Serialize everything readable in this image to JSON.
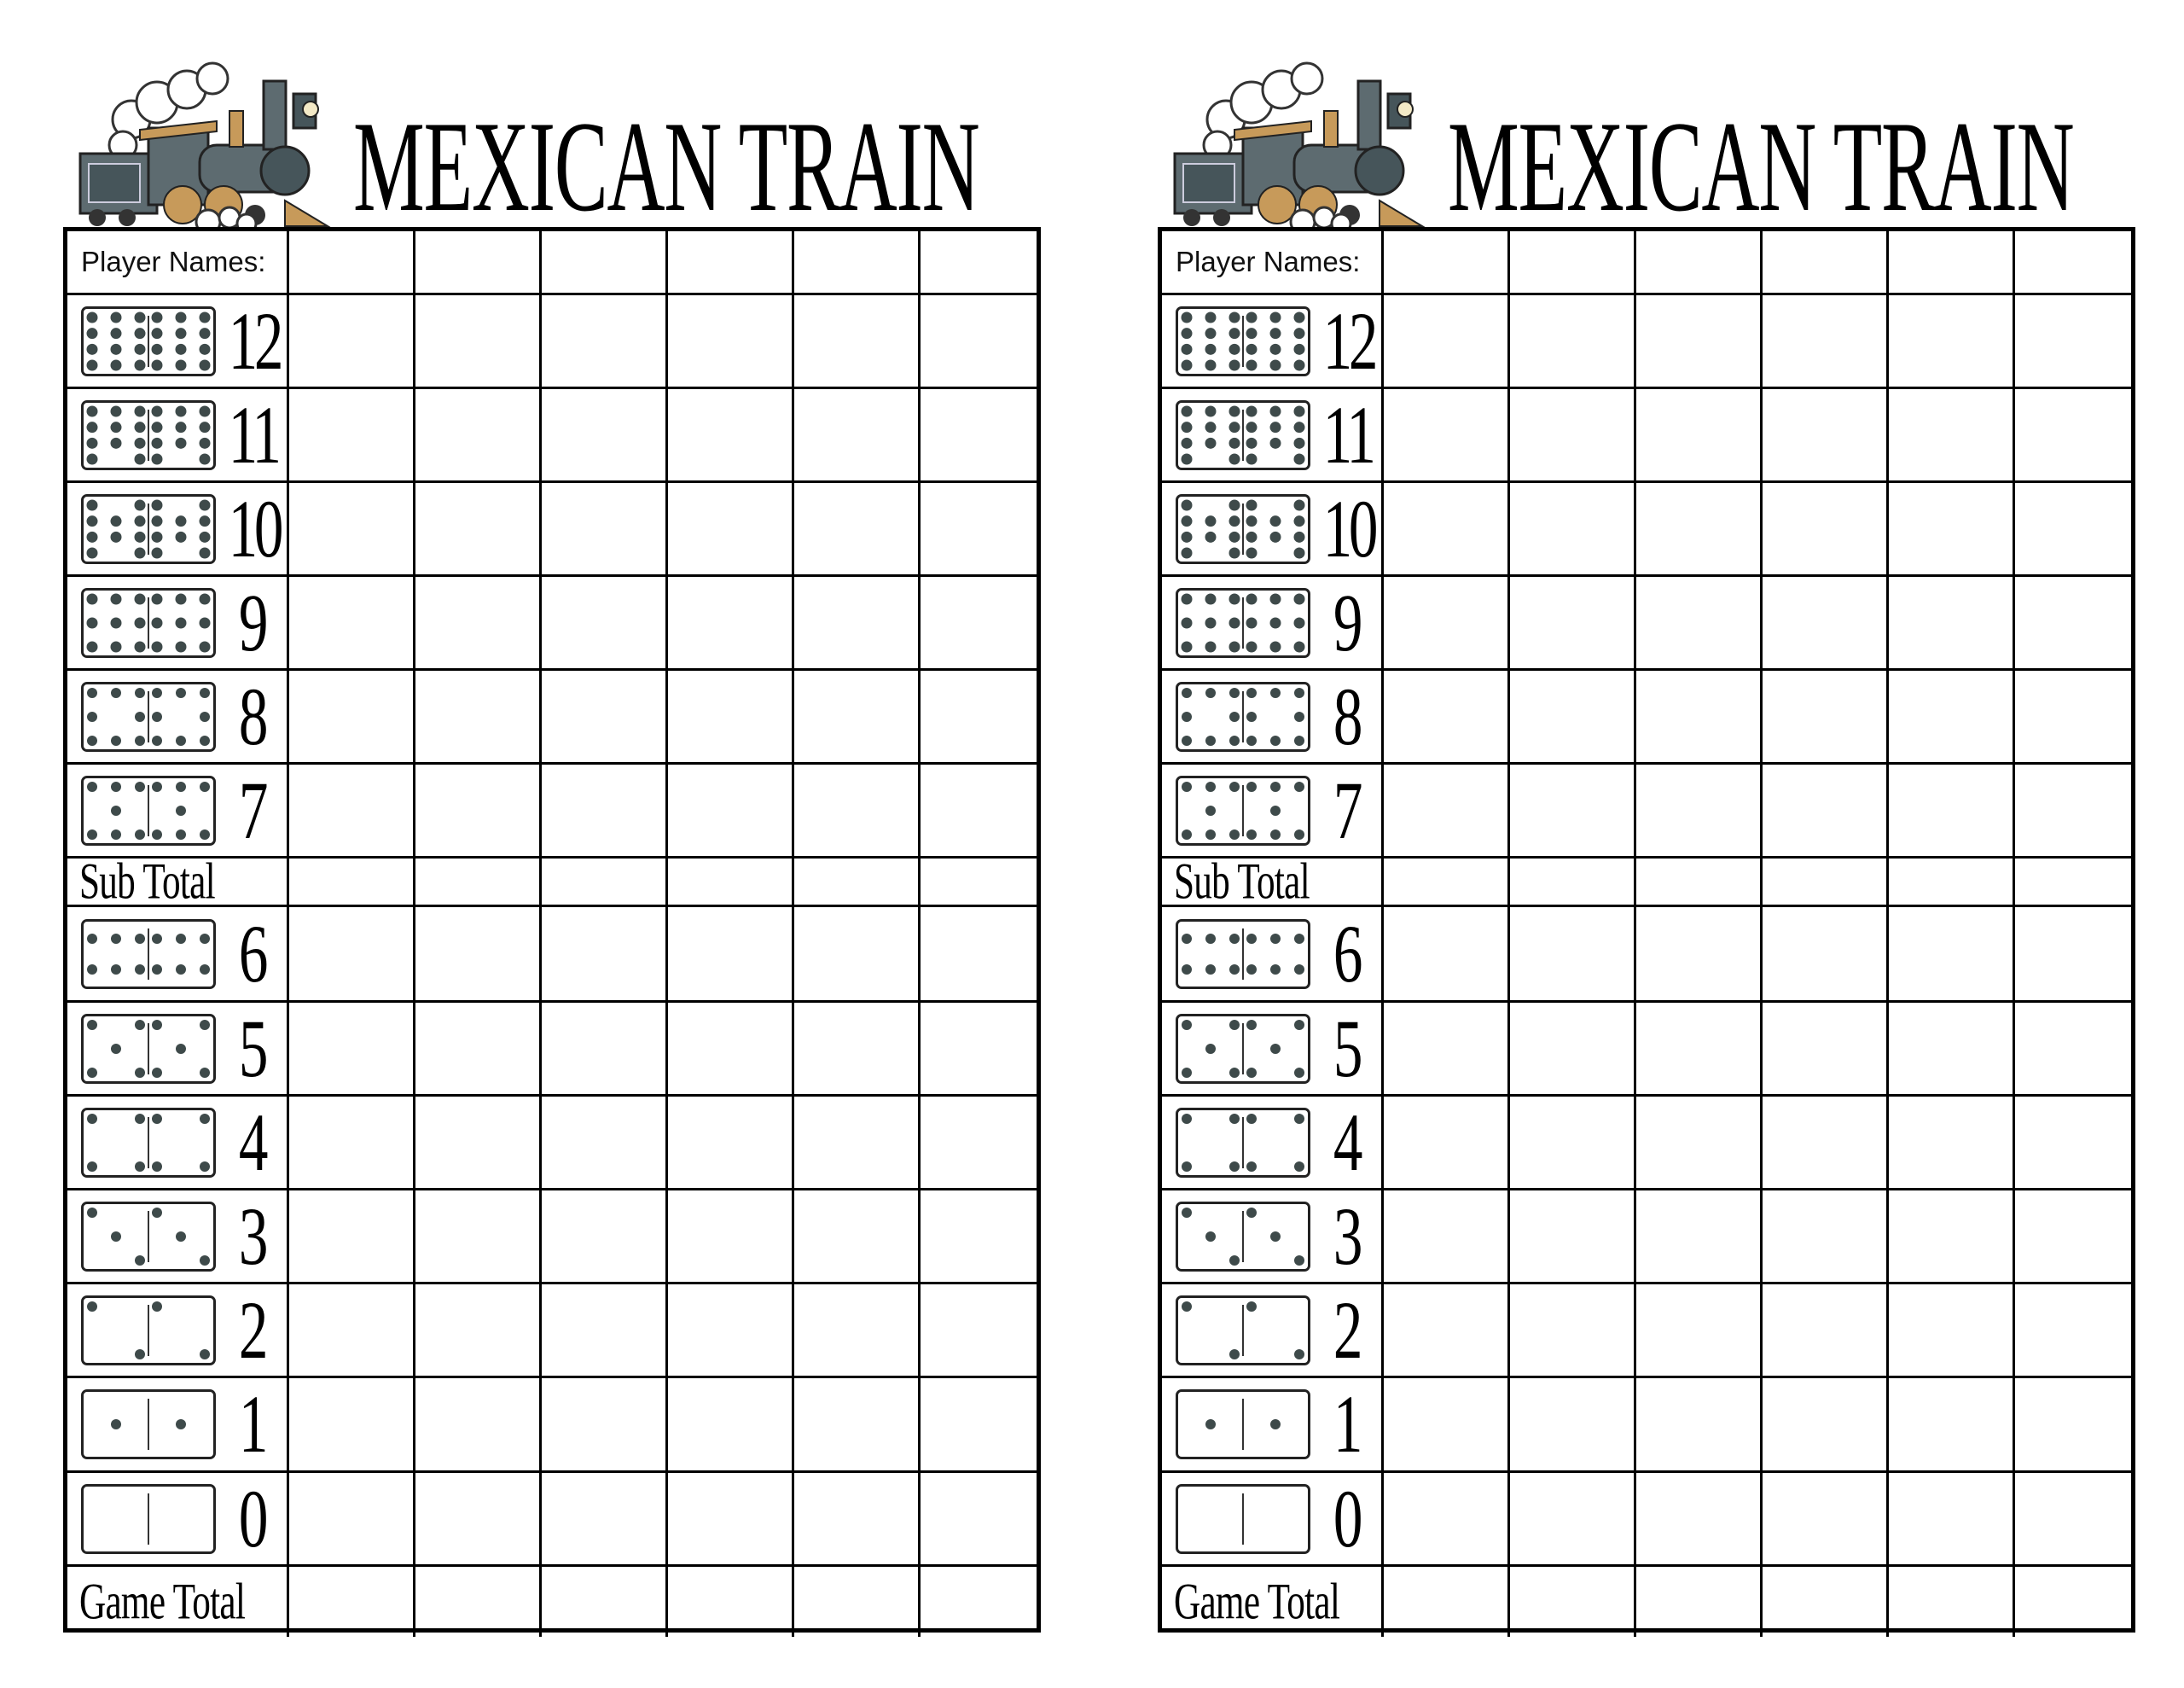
{
  "title": "MEXICAN TRAIN",
  "sheets": [
    "left",
    "right"
  ],
  "player_names_label": "Player Names:",
  "player_columns": 6,
  "rows": [
    {
      "type": "domino",
      "value": "12"
    },
    {
      "type": "domino",
      "value": "11"
    },
    {
      "type": "domino",
      "value": "10"
    },
    {
      "type": "domino",
      "value": "9"
    },
    {
      "type": "domino",
      "value": "8"
    },
    {
      "type": "domino",
      "value": "7"
    },
    {
      "type": "total",
      "label": "Sub Total"
    },
    {
      "type": "domino",
      "value": "6"
    },
    {
      "type": "domino",
      "value": "5"
    },
    {
      "type": "domino",
      "value": "4"
    },
    {
      "type": "domino",
      "value": "3"
    },
    {
      "type": "domino",
      "value": "2"
    },
    {
      "type": "domino",
      "value": "1"
    },
    {
      "type": "domino",
      "value": "0"
    },
    {
      "type": "total",
      "label": "Game Total"
    }
  ],
  "colors": {
    "pip": "#3e4a4a",
    "train_body": "#5d6b70",
    "train_brass": "#c79a5a",
    "ink": "#000000"
  },
  "icons": {
    "logo": "steam-locomotive-icon"
  }
}
